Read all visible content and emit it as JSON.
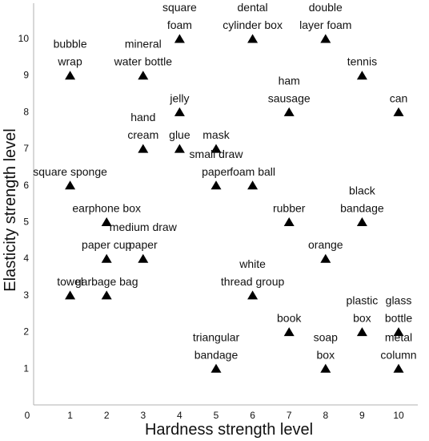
{
  "chart_data": {
    "type": "scatter",
    "title": "",
    "xlabel": "Hardness strength level",
    "ylabel": "Elasticity strength level",
    "xlim": [
      0,
      10.5
    ],
    "ylim": [
      0,
      10.5
    ],
    "xticks": [
      0,
      1,
      2,
      3,
      4,
      5,
      6,
      7,
      8,
      9,
      10
    ],
    "yticks": [
      1,
      2,
      3,
      4,
      5,
      6,
      7,
      8,
      9,
      10
    ],
    "grid": false,
    "marker": "triangle",
    "marker_color": "#000000",
    "points": [
      {
        "x": 4,
        "y": 10,
        "label": [
          "square",
          "foam"
        ]
      },
      {
        "x": 6,
        "y": 10,
        "label": [
          "dental",
          "cylinder box"
        ]
      },
      {
        "x": 8,
        "y": 10,
        "label": [
          "double",
          "layer foam"
        ]
      },
      {
        "x": 1,
        "y": 9,
        "label": [
          "bubble",
          "wrap"
        ]
      },
      {
        "x": 3,
        "y": 9,
        "label": [
          "mineral",
          "water bottle"
        ]
      },
      {
        "x": 9,
        "y": 9,
        "label": [
          "tennis"
        ]
      },
      {
        "x": 4,
        "y": 8,
        "label": [
          "jelly"
        ]
      },
      {
        "x": 7,
        "y": 8,
        "label": [
          "ham",
          "sausage"
        ]
      },
      {
        "x": 10,
        "y": 8,
        "label": [
          "can"
        ]
      },
      {
        "x": 3,
        "y": 7,
        "label": [
          "hand",
          "cream"
        ]
      },
      {
        "x": 4,
        "y": 7,
        "label": [
          "glue"
        ]
      },
      {
        "x": 5,
        "y": 7,
        "label": [
          "mask"
        ]
      },
      {
        "x": 1,
        "y": 6,
        "label": [
          "square sponge"
        ]
      },
      {
        "x": 5,
        "y": 6,
        "label": [
          "small draw",
          "paper"
        ]
      },
      {
        "x": 6,
        "y": 6,
        "label": [
          "foam ball"
        ]
      },
      {
        "x": 2,
        "y": 5,
        "label": [
          "earphone box"
        ]
      },
      {
        "x": 7,
        "y": 5,
        "label": [
          "rubber"
        ]
      },
      {
        "x": 9,
        "y": 5,
        "label": [
          "black",
          "bandage"
        ]
      },
      {
        "x": 2,
        "y": 4,
        "label": [
          "paper cup"
        ]
      },
      {
        "x": 3,
        "y": 4,
        "label": [
          "medium draw",
          "paper"
        ]
      },
      {
        "x": 8,
        "y": 4,
        "label": [
          "orange"
        ]
      },
      {
        "x": 1,
        "y": 3,
        "label": [
          "towel"
        ]
      },
      {
        "x": 2,
        "y": 3,
        "label": [
          "garbage bag"
        ]
      },
      {
        "x": 6,
        "y": 3,
        "label": [
          "white",
          "thread group"
        ]
      },
      {
        "x": 7,
        "y": 2,
        "label": [
          "book"
        ]
      },
      {
        "x": 9,
        "y": 2,
        "label": [
          "plastic",
          "box"
        ]
      },
      {
        "x": 10,
        "y": 2,
        "label": [
          "glass",
          "bottle"
        ]
      },
      {
        "x": 5,
        "y": 1,
        "label": [
          "triangular",
          "bandage"
        ]
      },
      {
        "x": 8,
        "y": 1,
        "label": [
          "soap",
          "box"
        ]
      },
      {
        "x": 10,
        "y": 1,
        "label": [
          "metal",
          "column"
        ]
      }
    ]
  }
}
